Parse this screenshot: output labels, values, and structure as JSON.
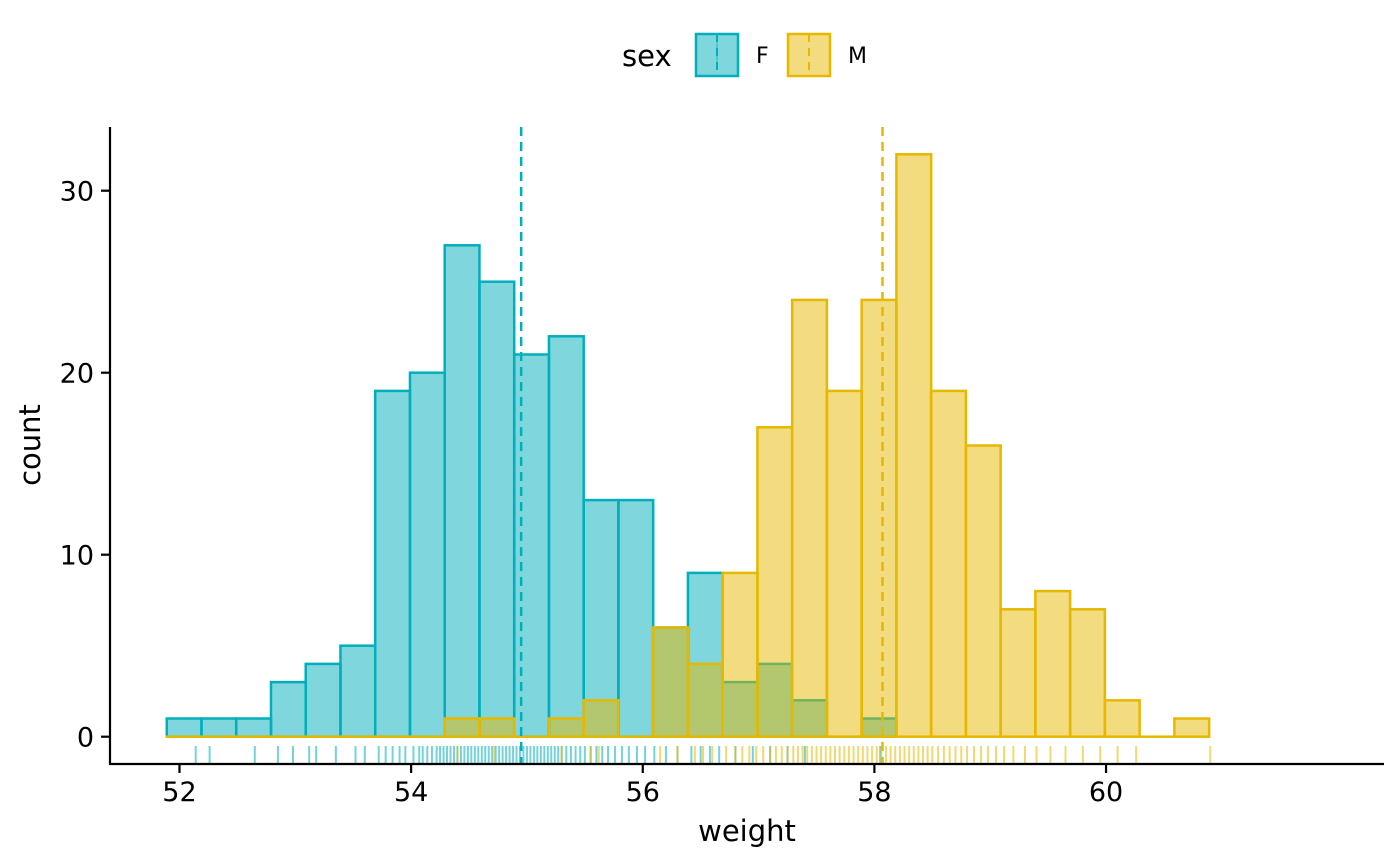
{
  "chart_data": {
    "type": "bar",
    "subtype": "overlapping histogram with rug and mean lines",
    "xlabel": "weight",
    "ylabel": "count",
    "xlim": [
      51.4,
      62.4
    ],
    "ylim": [
      -1.5,
      33.5
    ],
    "x_ticks": [
      52,
      54,
      56,
      58,
      60
    ],
    "y_ticks": [
      0,
      10,
      20,
      30
    ],
    "bin_width": 0.3,
    "legend": {
      "title": "sex",
      "position": "top"
    },
    "series": [
      {
        "name": "F",
        "fill": "#00AFBB",
        "stroke": "#00AFBB",
        "mean": 54.95,
        "bins": [
          {
            "x": [
              51.89,
              52.19
            ],
            "count": 1
          },
          {
            "x": [
              52.19,
              52.49
            ],
            "count": 1
          },
          {
            "x": [
              52.49,
              52.79
            ],
            "count": 1
          },
          {
            "x": [
              52.79,
              53.09
            ],
            "count": 3
          },
          {
            "x": [
              53.09,
              53.39
            ],
            "count": 4
          },
          {
            "x": [
              53.39,
              53.69
            ],
            "count": 5
          },
          {
            "x": [
              53.69,
              53.99
            ],
            "count": 19
          },
          {
            "x": [
              53.99,
              54.29
            ],
            "count": 20
          },
          {
            "x": [
              54.29,
              54.59
            ],
            "count": 27
          },
          {
            "x": [
              54.59,
              54.89
            ],
            "count": 25
          },
          {
            "x": [
              54.89,
              55.19
            ],
            "count": 21
          },
          {
            "x": [
              55.19,
              55.49
            ],
            "count": 22
          },
          {
            "x": [
              55.49,
              55.79
            ],
            "count": 13
          },
          {
            "x": [
              55.79,
              56.09
            ],
            "count": 13
          },
          {
            "x": [
              56.09,
              56.39
            ],
            "count": 6
          },
          {
            "x": [
              56.39,
              56.69
            ],
            "count": 9
          },
          {
            "x": [
              56.69,
              56.99
            ],
            "count": 3
          },
          {
            "x": [
              56.99,
              57.29
            ],
            "count": 4
          },
          {
            "x": [
              57.29,
              57.59
            ],
            "count": 2
          },
          {
            "x": [
              57.59,
              57.89
            ],
            "count": 0
          },
          {
            "x": [
              57.89,
              58.19
            ],
            "count": 1
          }
        ]
      },
      {
        "name": "M",
        "fill": "#E7B800",
        "stroke": "#E7B800",
        "mean": 58.07,
        "bins": [
          {
            "x": [
              51.89,
              52.19
            ],
            "count": 0
          },
          {
            "x": [
              52.19,
              52.49
            ],
            "count": 0
          },
          {
            "x": [
              52.49,
              52.79
            ],
            "count": 0
          },
          {
            "x": [
              52.79,
              53.09
            ],
            "count": 0
          },
          {
            "x": [
              53.09,
              53.39
            ],
            "count": 0
          },
          {
            "x": [
              53.39,
              53.69
            ],
            "count": 0
          },
          {
            "x": [
              53.69,
              53.99
            ],
            "count": 0
          },
          {
            "x": [
              53.99,
              54.29
            ],
            "count": 0
          },
          {
            "x": [
              54.29,
              54.59
            ],
            "count": 1
          },
          {
            "x": [
              54.59,
              54.89
            ],
            "count": 1
          },
          {
            "x": [
              54.89,
              55.19
            ],
            "count": 0
          },
          {
            "x": [
              55.19,
              55.49
            ],
            "count": 1
          },
          {
            "x": [
              55.49,
              55.79
            ],
            "count": 2
          },
          {
            "x": [
              55.79,
              56.09
            ],
            "count": 0
          },
          {
            "x": [
              56.09,
              56.39
            ],
            "count": 6
          },
          {
            "x": [
              56.39,
              56.69
            ],
            "count": 4
          },
          {
            "x": [
              56.69,
              56.99
            ],
            "count": 9
          },
          {
            "x": [
              56.99,
              57.29
            ],
            "count": 17
          },
          {
            "x": [
              57.29,
              57.59
            ],
            "count": 24
          },
          {
            "x": [
              57.59,
              57.89
            ],
            "count": 19
          },
          {
            "x": [
              57.89,
              58.19
            ],
            "count": 24
          },
          {
            "x": [
              58.19,
              58.49
            ],
            "count": 32
          },
          {
            "x": [
              58.49,
              58.79
            ],
            "count": 19
          },
          {
            "x": [
              58.79,
              59.09
            ],
            "count": 16
          },
          {
            "x": [
              59.09,
              59.39
            ],
            "count": 7
          },
          {
            "x": [
              59.39,
              59.69
            ],
            "count": 8
          },
          {
            "x": [
              59.69,
              59.99
            ],
            "count": 7
          },
          {
            "x": [
              59.99,
              60.29
            ],
            "count": 2
          },
          {
            "x": [
              60.29,
              60.59
            ],
            "count": 0
          },
          {
            "x": [
              60.59,
              60.89
            ],
            "count": 1
          }
        ]
      }
    ],
    "rug": {
      "F": [
        52.14,
        52.26,
        52.65,
        52.85,
        52.98,
        53.12,
        53.18,
        53.35,
        53.52,
        53.6,
        53.72,
        53.78,
        53.84,
        53.9,
        53.95,
        54.02,
        54.07,
        54.1,
        54.14,
        54.18,
        54.22,
        54.25,
        54.28,
        54.31,
        54.34,
        54.37,
        54.4,
        54.43,
        54.46,
        54.49,
        54.52,
        54.55,
        54.58,
        54.61,
        54.64,
        54.67,
        54.7,
        54.73,
        54.76,
        54.79,
        54.82,
        54.85,
        54.88,
        54.91,
        54.94,
        54.97,
        55.0,
        55.03,
        55.06,
        55.09,
        55.12,
        55.15,
        55.18,
        55.21,
        55.24,
        55.27,
        55.3,
        55.34,
        55.38,
        55.42,
        55.46,
        55.5,
        55.55,
        55.6,
        55.65,
        55.7,
        55.76,
        55.82,
        55.88,
        55.95,
        56.02,
        56.1,
        56.2,
        56.3,
        56.42,
        56.5,
        56.58,
        56.66,
        56.8,
        56.95,
        57.1,
        57.25,
        57.4,
        58.05
      ],
      "M": [
        54.4,
        54.72,
        55.3,
        55.55,
        55.62,
        56.15,
        56.3,
        56.45,
        56.52,
        56.6,
        56.72,
        56.8,
        56.86,
        56.92,
        56.98,
        57.04,
        57.1,
        57.15,
        57.2,
        57.25,
        57.3,
        57.34,
        57.38,
        57.42,
        57.46,
        57.5,
        57.54,
        57.58,
        57.62,
        57.66,
        57.7,
        57.74,
        57.78,
        57.82,
        57.86,
        57.9,
        57.94,
        57.98,
        58.02,
        58.06,
        58.1,
        58.14,
        58.18,
        58.22,
        58.26,
        58.3,
        58.34,
        58.38,
        58.42,
        58.46,
        58.5,
        58.55,
        58.6,
        58.65,
        58.7,
        58.75,
        58.8,
        58.86,
        58.92,
        58.98,
        59.05,
        59.12,
        59.2,
        59.3,
        59.4,
        59.52,
        59.65,
        59.8,
        59.95,
        60.1,
        60.26,
        60.9
      ]
    }
  }
}
